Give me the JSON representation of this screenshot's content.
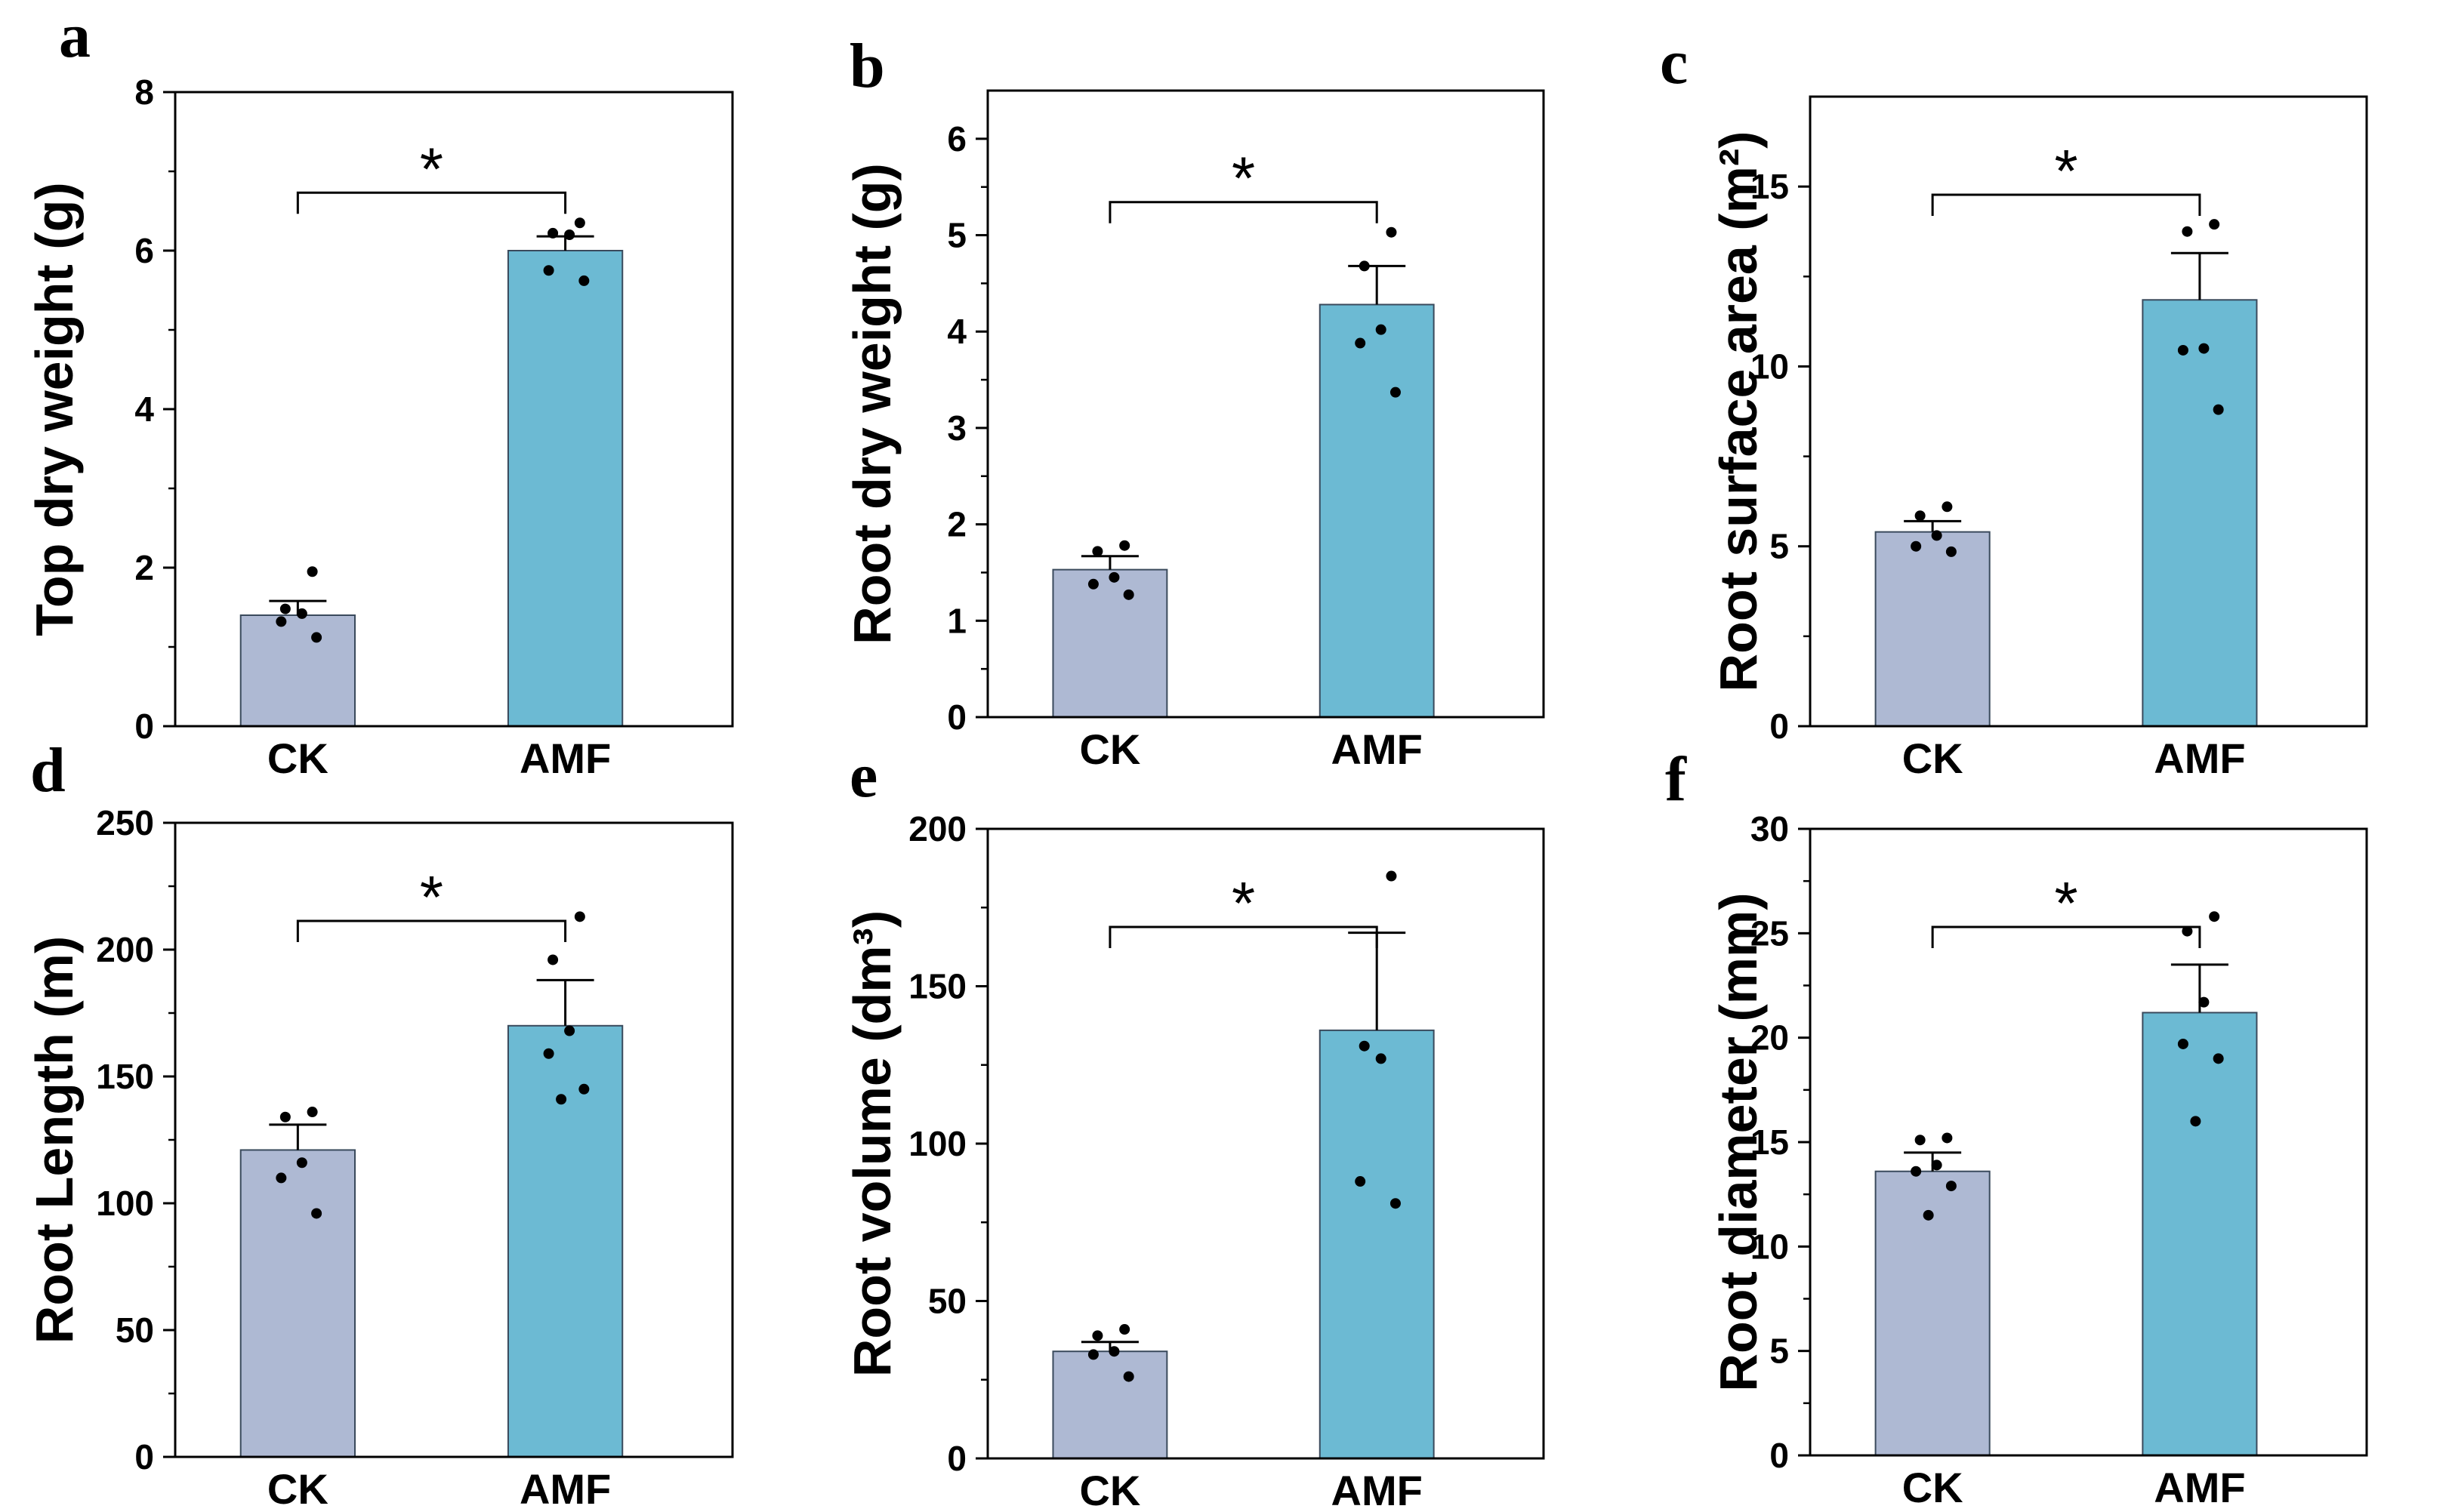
{
  "colors": {
    "ck": "#aeb9d3",
    "amf": "#6cbad3",
    "edge": "#3a4a5c",
    "axis": "#000000"
  },
  "chart_data": [
    {
      "type": "bar",
      "panel": "a",
      "ylabel": "Top dry weight (g)",
      "categories": [
        "CK",
        "AMF"
      ],
      "values": [
        1.4,
        6.0
      ],
      "errors": [
        0.18,
        0.18
      ],
      "ylim": [
        0,
        8
      ],
      "yticks": [
        0,
        2,
        4,
        6,
        8
      ],
      "points": [
        [
          1.95,
          1.48,
          1.42,
          1.32,
          1.12
        ],
        [
          6.35,
          6.22,
          6.2,
          5.75,
          5.62
        ]
      ],
      "significance": "*"
    },
    {
      "type": "bar",
      "panel": "b",
      "ylabel": "Root dry weight (g)",
      "categories": [
        "CK",
        "AMF"
      ],
      "values": [
        1.53,
        4.28
      ],
      "errors": [
        0.14,
        0.4
      ],
      "ylim": [
        0,
        6.5
      ],
      "yticks": [
        0,
        1,
        2,
        3,
        4,
        5,
        6
      ],
      "points": [
        [
          1.78,
          1.72,
          1.45,
          1.38,
          1.27
        ],
        [
          5.03,
          4.68,
          4.02,
          3.88,
          3.37
        ]
      ],
      "significance": "*"
    },
    {
      "type": "bar",
      "panel": "c",
      "ylabel": "Root surface area (m²)",
      "categories": [
        "CK",
        "AMF"
      ],
      "values": [
        5.4,
        11.85
      ],
      "errors": [
        0.3,
        1.3
      ],
      "ylim": [
        0,
        17.5
      ],
      "yticks": [
        0,
        5,
        10,
        15
      ],
      "points": [
        [
          6.1,
          5.85,
          5.3,
          5.0,
          4.85
        ],
        [
          13.95,
          13.75,
          10.5,
          10.45,
          8.8
        ]
      ],
      "significance": "*"
    },
    {
      "type": "bar",
      "panel": "d",
      "ylabel": "Root Length (m)",
      "categories": [
        "CK",
        "AMF"
      ],
      "values": [
        121,
        170
      ],
      "errors": [
        10,
        18
      ],
      "ylim": [
        0,
        250
      ],
      "yticks": [
        0,
        50,
        100,
        150,
        200,
        250
      ],
      "points": [
        [
          136,
          134,
          116,
          110,
          96
        ],
        [
          213,
          196,
          168,
          159,
          145,
          141
        ]
      ],
      "significance": "*"
    },
    {
      "type": "bar",
      "panel": "e",
      "ylabel": "Root volume (dm³)",
      "categories": [
        "CK",
        "AMF"
      ],
      "values": [
        34,
        136
      ],
      "errors": [
        3,
        31
      ],
      "ylim": [
        0,
        200
      ],
      "yticks": [
        0,
        50,
        100,
        150,
        200
      ],
      "points": [
        [
          41,
          39,
          34,
          33,
          26
        ],
        [
          185,
          131,
          127,
          88,
          81
        ]
      ],
      "significance": "*"
    },
    {
      "type": "bar",
      "panel": "f",
      "ylabel": "Root diameter (mm)",
      "categories": [
        "CK",
        "AMF"
      ],
      "values": [
        13.6,
        21.2
      ],
      "errors": [
        0.9,
        2.3
      ],
      "ylim": [
        0,
        30
      ],
      "yticks": [
        0,
        5,
        10,
        15,
        20,
        25,
        30
      ],
      "points": [
        [
          15.2,
          15.1,
          13.9,
          13.6,
          12.9,
          11.5
        ],
        [
          25.8,
          25.1,
          21.7,
          19.7,
          19.0,
          16.0
        ]
      ],
      "significance": "*"
    }
  ]
}
